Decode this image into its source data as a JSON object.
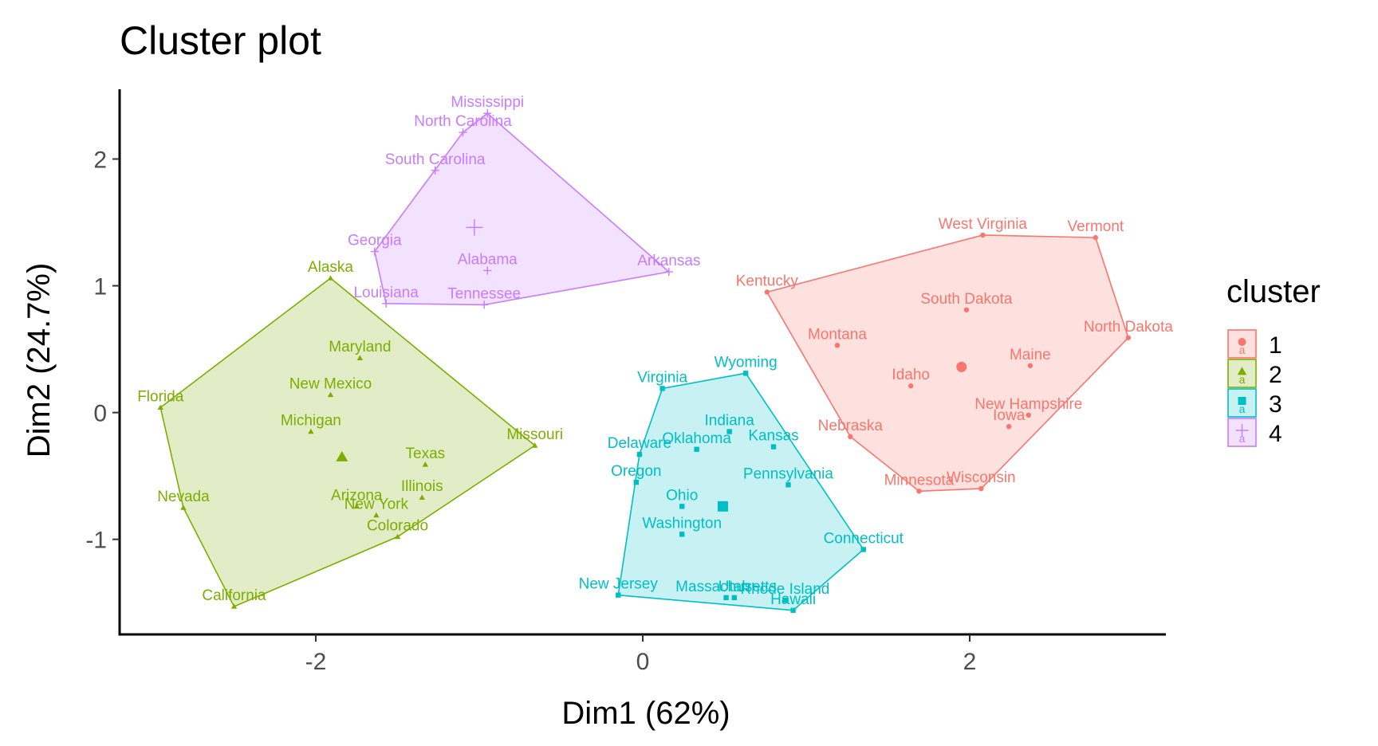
{
  "chart_data": {
    "type": "scatter",
    "title": "Cluster plot",
    "xlabel": "Dim1 (62%)",
    "ylabel": "Dim2 (24.7%)",
    "xlim": [
      -3.2,
      3.2
    ],
    "ylim": [
      -1.75,
      2.55
    ],
    "x_ticks": [
      -2,
      0,
      2
    ],
    "y_ticks": [
      -1,
      0,
      1,
      2
    ],
    "x_tick_labels": [
      "-2",
      "0",
      "2"
    ],
    "y_tick_labels": [
      "-1",
      "0",
      "1",
      "2"
    ],
    "grid": false,
    "legend": {
      "title": "cluster",
      "position": "right",
      "labels": [
        "1",
        "2",
        "3",
        "4"
      ],
      "key_glyph": "a"
    },
    "series": [
      {
        "name": "1",
        "color": "#F8766D",
        "shape": "circle",
        "centroid": [
          1.95,
          0.36
        ],
        "points": [
          {
            "label": "West Virginia",
            "x": 2.08,
            "y": 1.4
          },
          {
            "label": "Vermont",
            "x": 2.77,
            "y": 1.38
          },
          {
            "label": "Kentucky",
            "x": 0.76,
            "y": 0.95
          },
          {
            "label": "South Dakota",
            "x": 1.98,
            "y": 0.81
          },
          {
            "label": "North Dakota",
            "x": 2.97,
            "y": 0.59
          },
          {
            "label": "Montana",
            "x": 1.19,
            "y": 0.53
          },
          {
            "label": "Maine",
            "x": 2.37,
            "y": 0.37
          },
          {
            "label": "Idaho",
            "x": 1.64,
            "y": 0.21
          },
          {
            "label": "New Hampshire",
            "x": 2.36,
            "y": -0.02
          },
          {
            "label": "Iowa",
            "x": 2.24,
            "y": -0.11
          },
          {
            "label": "Nebraska",
            "x": 1.27,
            "y": -0.19
          },
          {
            "label": "Minnesota",
            "x": 1.69,
            "y": -0.62
          },
          {
            "label": "Wisconsin",
            "x": 2.07,
            "y": -0.6
          }
        ]
      },
      {
        "name": "2",
        "color": "#7CAE00",
        "shape": "triangle",
        "centroid": [
          -1.84,
          -0.35
        ],
        "points": [
          {
            "label": "Alaska",
            "x": -1.91,
            "y": 1.06
          },
          {
            "label": "Maryland",
            "x": -1.73,
            "y": 0.43
          },
          {
            "label": "New Mexico",
            "x": -1.91,
            "y": 0.14
          },
          {
            "label": "Florida",
            "x": -2.95,
            "y": 0.04
          },
          {
            "label": "Michigan",
            "x": -2.03,
            "y": -0.15
          },
          {
            "label": "Missouri",
            "x": -0.66,
            "y": -0.26
          },
          {
            "label": "Texas",
            "x": -1.33,
            "y": -0.41
          },
          {
            "label": "Illinois",
            "x": -1.35,
            "y": -0.67
          },
          {
            "label": "Arizona",
            "x": -1.75,
            "y": -0.74
          },
          {
            "label": "New York",
            "x": -1.63,
            "y": -0.81
          },
          {
            "label": "Nevada",
            "x": -2.81,
            "y": -0.75
          },
          {
            "label": "Colorado",
            "x": -1.5,
            "y": -0.98
          },
          {
            "label": "California",
            "x": -2.5,
            "y": -1.53
          }
        ]
      },
      {
        "name": "3",
        "color": "#00BFC4",
        "shape": "square",
        "centroid": [
          0.49,
          -0.74
        ],
        "points": [
          {
            "label": "Wyoming",
            "x": 0.63,
            "y": 0.31
          },
          {
            "label": "Virginia",
            "x": 0.12,
            "y": 0.19
          },
          {
            "label": "Indiana",
            "x": 0.53,
            "y": -0.15
          },
          {
            "label": "Oklahoma",
            "x": 0.33,
            "y": -0.29
          },
          {
            "label": "Kansas",
            "x": 0.8,
            "y": -0.27
          },
          {
            "label": "Delaware",
            "x": -0.02,
            "y": -0.33
          },
          {
            "label": "Oregon",
            "x": -0.04,
            "y": -0.55
          },
          {
            "label": "Pennsylvania",
            "x": 0.89,
            "y": -0.57
          },
          {
            "label": "Ohio",
            "x": 0.24,
            "y": -0.74
          },
          {
            "label": "Washington",
            "x": 0.24,
            "y": -0.96
          },
          {
            "label": "Connecticut",
            "x": 1.35,
            "y": -1.08
          },
          {
            "label": "New Jersey",
            "x": -0.15,
            "y": -1.44
          },
          {
            "label": "Massachusetts",
            "x": 0.51,
            "y": -1.46
          },
          {
            "label": "Utah",
            "x": 0.56,
            "y": -1.46
          },
          {
            "label": "Rhode Island",
            "x": 0.87,
            "y": -1.48
          },
          {
            "label": "Hawaii",
            "x": 0.92,
            "y": -1.56
          }
        ]
      },
      {
        "name": "4",
        "color": "#C77CFF",
        "shape": "plus",
        "centroid": [
          -1.03,
          1.46
        ],
        "points": [
          {
            "label": "Mississippi",
            "x": -0.95,
            "y": 2.36
          },
          {
            "label": "North Carolina",
            "x": -1.1,
            "y": 2.21
          },
          {
            "label": "South Carolina",
            "x": -1.27,
            "y": 1.91
          },
          {
            "label": "Georgia",
            "x": -1.64,
            "y": 1.27
          },
          {
            "label": "Alabama",
            "x": -0.95,
            "y": 1.12
          },
          {
            "label": "Arkansas",
            "x": 0.16,
            "y": 1.11
          },
          {
            "label": "Louisiana",
            "x": -1.57,
            "y": 0.86
          },
          {
            "label": "Tennessee",
            "x": -0.97,
            "y": 0.85
          }
        ]
      }
    ]
  }
}
